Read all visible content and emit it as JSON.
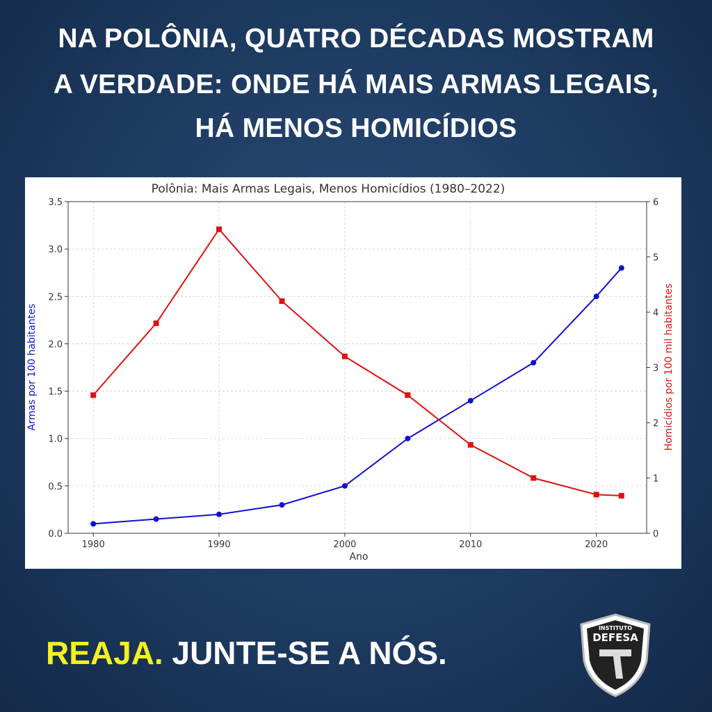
{
  "header": {
    "title_lines": [
      "NA POLÔNIA, QUATRO DÉCADAS MOSTRAM",
      "A VERDADE: ONDE HÁ MAIS ARMAS LEGAIS,",
      "HÁ MENOS HOMICÍDIOS"
    ]
  },
  "chart_data": {
    "type": "line",
    "title": "Polônia: Mais Armas Legais, Menos Homicídios (1980–2022)",
    "x_label": "Ano",
    "y_label": "Armas por 100 habitantes",
    "y2_label": "Homicídios por 100 mil habitantes",
    "x": [
      1980,
      1985,
      1990,
      1995,
      2000,
      2005,
      2010,
      2015,
      2020,
      2022
    ],
    "series": [
      {
        "name": "Armas por 100 habitantes",
        "color": "#1010d0",
        "marker": "circle",
        "values": [
          0.1,
          0.15,
          0.2,
          0.3,
          0.5,
          1.0,
          1.4,
          1.8,
          2.5,
          2.8
        ]
      },
      {
        "name": "Homicídios por 100 mil habitantes",
        "color": "#e01010",
        "marker": "square",
        "axis": "y2",
        "values": [
          2.5,
          3.8,
          5.5,
          4.2,
          3.2,
          2.5,
          1.6,
          1.0,
          0.7,
          0.68
        ]
      }
    ],
    "xlim": [
      1978,
      2024
    ],
    "xticks": [
      1980,
      1990,
      2000,
      2010,
      2020
    ],
    "ylim": [
      0,
      3.5
    ],
    "yticks": [
      {
        "value": 0,
        "label": "0.0"
      },
      0.5,
      {
        "value": 1,
        "label": "1.0"
      },
      1.5,
      {
        "value": 2,
        "label": "2.0"
      },
      2.5,
      {
        "value": 3,
        "label": "3.0"
      },
      3.5
    ],
    "y2lim": [
      0,
      6
    ],
    "y2ticks": [
      0,
      1,
      2,
      3,
      4,
      5,
      6
    ],
    "grid": true
  },
  "footer": {
    "cta_highlight": "REAJA.",
    "cta": "JUNTE-SE A NÓS."
  },
  "logo": {
    "top": "INSTITUTO",
    "name": "DEFESA"
  }
}
